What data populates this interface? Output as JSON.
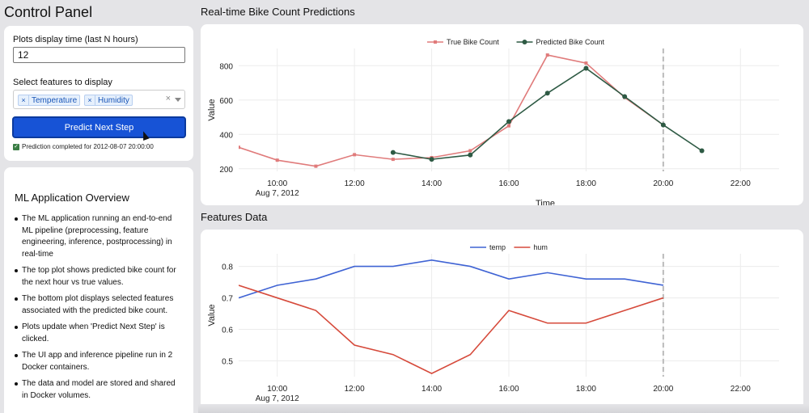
{
  "control_panel": {
    "title": "Control Panel",
    "hours_label": "Plots display time (last N hours)",
    "hours_value": "12",
    "features_label": "Select features to display",
    "features_selected": [
      "Temperature",
      "Humidity"
    ],
    "clear_icon": "×",
    "predict_button": "Predict Next Step",
    "status_text": "Prediction completed for 2012-08-07 20:00:00"
  },
  "overview": {
    "title": "ML Application Overview",
    "items": [
      "The ML application running an end-to-end ML pipeline (preprocessing, feature engineering, inference, postprocessing) in real-time",
      "The top plot shows predicted bike count for the next hour vs true values.",
      "The bottom plot displays selected features associated with the predicted bike count.",
      "Plots update when 'Predict Next Step' is clicked.",
      "The UI app and inference pipeline run in 2 Docker containers.",
      "The data and model are stored and shared in Docker volumes."
    ]
  },
  "sections": {
    "predictions_title": "Real-time Bike Count Predictions",
    "features_title": "Features Data"
  },
  "chart_data": [
    {
      "type": "line",
      "title": "Real-time Bike Count Predictions",
      "xlabel": "Time",
      "ylabel": "Value",
      "x_tick_labels": [
        "10:00",
        "12:00",
        "14:00",
        "16:00",
        "18:00",
        "20:00",
        "22:00"
      ],
      "x_sub_label": "Aug 7, 2012",
      "x_range": [
        9,
        23
      ],
      "y_ticks": [
        200,
        400,
        600,
        800
      ],
      "y_range": [
        185,
        900
      ],
      "marker_hour": 20,
      "series": [
        {
          "name": "True Bike Count",
          "color": "#e07b7b",
          "marker": "square",
          "x": [
            9,
            10,
            11,
            12,
            13,
            14,
            15,
            16,
            17,
            18,
            19,
            20
          ],
          "values": [
            325,
            250,
            215,
            282,
            255,
            265,
            305,
            450,
            862,
            815,
            615,
            455
          ]
        },
        {
          "name": "Predicted Bike Count",
          "color": "#2e5a44",
          "marker": "circle",
          "x": [
            13,
            14,
            15,
            16,
            17,
            18,
            19,
            20,
            21
          ],
          "values": [
            295,
            255,
            280,
            475,
            640,
            785,
            620,
            455,
            305
          ]
        }
      ]
    },
    {
      "type": "line",
      "title": "Features Data",
      "xlabel": "Time",
      "ylabel": "Value",
      "x_tick_labels": [
        "10:00",
        "12:00",
        "14:00",
        "16:00",
        "18:00",
        "20:00",
        "22:00"
      ],
      "x_sub_label": "Aug 7, 2012",
      "x_range": [
        9,
        23
      ],
      "y_ticks": [
        0.5,
        0.6,
        0.7,
        0.8
      ],
      "y_range": [
        0.45,
        0.84
      ],
      "marker_hour": 20,
      "series": [
        {
          "name": "temp",
          "color": "#3f63d4",
          "x": [
            9,
            10,
            11,
            12,
            13,
            14,
            15,
            16,
            17,
            18,
            19,
            20
          ],
          "values": [
            0.7,
            0.74,
            0.76,
            0.8,
            0.8,
            0.82,
            0.8,
            0.76,
            0.78,
            0.76,
            0.76,
            0.74
          ]
        },
        {
          "name": "hum",
          "color": "#d64a3b",
          "x": [
            9,
            10,
            11,
            12,
            13,
            14,
            15,
            16,
            17,
            18,
            19,
            20
          ],
          "values": [
            0.74,
            0.7,
            0.66,
            0.55,
            0.52,
            0.46,
            0.52,
            0.66,
            0.62,
            0.62,
            0.66,
            0.7
          ]
        }
      ]
    }
  ]
}
